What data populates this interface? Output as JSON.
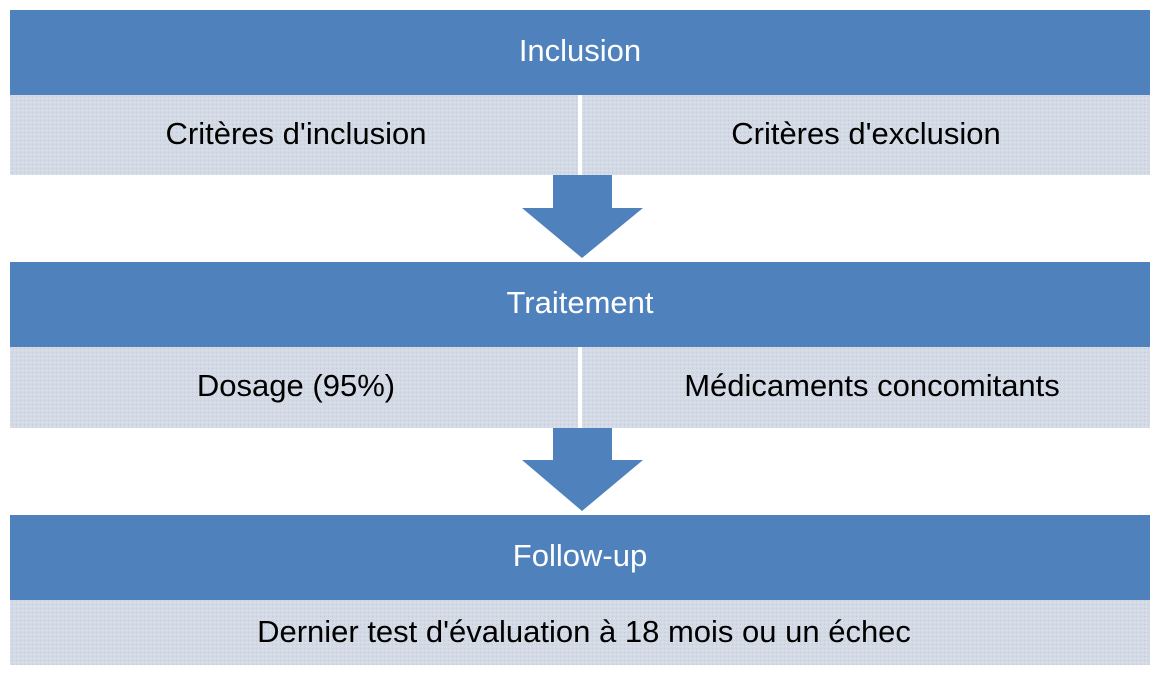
{
  "stages": [
    {
      "title": "Inclusion",
      "items": [
        "Critères d'inclusion",
        "Critères d'exclusion"
      ]
    },
    {
      "title": "Traitement",
      "items": [
        "Dosage (95%)",
        "Médicaments concomitants"
      ]
    },
    {
      "title": "Follow-up",
      "items": [
        "Dernier test d'évaluation à 18 mois ou un échec"
      ]
    }
  ]
}
